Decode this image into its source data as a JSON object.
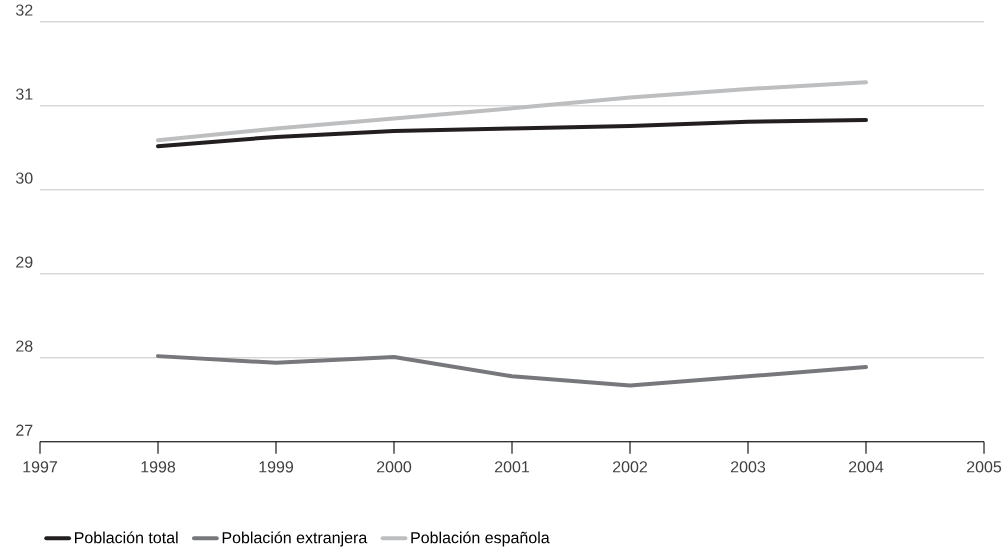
{
  "chart_data": {
    "type": "line",
    "x": [
      1998,
      1999,
      2000,
      2001,
      2002,
      2003,
      2004
    ],
    "series": [
      {
        "name": "Población total",
        "color": "#231f20",
        "values": [
          30.52,
          30.63,
          30.7,
          30.73,
          30.76,
          30.81,
          30.83
        ]
      },
      {
        "name": "Población extranjera",
        "color": "#77787b",
        "values": [
          28.02,
          27.94,
          28.01,
          27.78,
          27.67,
          27.78,
          27.89
        ]
      },
      {
        "name": "Población española",
        "color": "#bcbec0",
        "values": [
          30.59,
          30.73,
          30.85,
          30.97,
          31.1,
          31.2,
          31.28
        ]
      }
    ],
    "xlim": [
      1997,
      2005
    ],
    "xticks": [
      1997,
      1998,
      1999,
      2000,
      2001,
      2002,
      2003,
      2004,
      2005
    ],
    "ylim": [
      27,
      32
    ],
    "yticks": [
      27,
      28,
      29,
      30,
      31,
      32
    ],
    "grid": "y",
    "legend": "bottom",
    "marker": "none",
    "line_style": "solid"
  }
}
